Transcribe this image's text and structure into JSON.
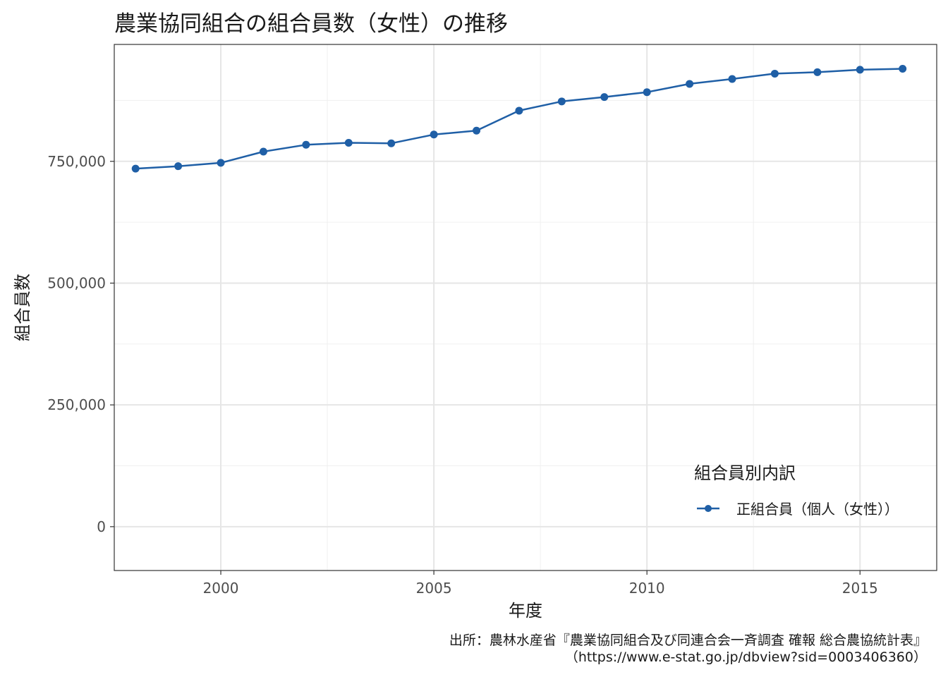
{
  "chart_data": {
    "type": "line",
    "title": "農業協同組合の組合員数（女性）の推移",
    "xlabel": "年度",
    "ylabel": "組合員数",
    "xlim": [
      1997.5,
      2016.8
    ],
    "ylim": [
      -90000,
      990000
    ],
    "x_ticks": [
      2000,
      2005,
      2010,
      2015
    ],
    "x_tick_labels": [
      "2000",
      "2005",
      "2010",
      "2015"
    ],
    "y_ticks": [
      0,
      250000,
      500000,
      750000
    ],
    "y_tick_labels": [
      "0",
      "250,000",
      "500,000",
      "750,000"
    ],
    "grid": true,
    "legend": {
      "title": "組合員別内訳",
      "position": "bottom-right"
    },
    "x": [
      1998,
      1999,
      2000,
      2001,
      2002,
      2003,
      2004,
      2005,
      2006,
      2007,
      2008,
      2009,
      2010,
      2011,
      2012,
      2013,
      2014,
      2015,
      2016
    ],
    "series": [
      {
        "name": "正組合員（個人（女性））",
        "color": "#1f5fa6",
        "values": [
          735000,
          740000,
          747000,
          770000,
          784000,
          788000,
          787000,
          805000,
          813000,
          854000,
          873000,
          882000,
          892000,
          909000,
          919000,
          930000,
          933000,
          938000,
          940000
        ]
      }
    ]
  },
  "caption": {
    "line1": "出所：農林水産省『農業協同組合及び同連合会一斉調査 確報 総合農協統計表』",
    "line2": "（https://www.e-stat.go.jp/dbview?sid=0003406360）"
  }
}
